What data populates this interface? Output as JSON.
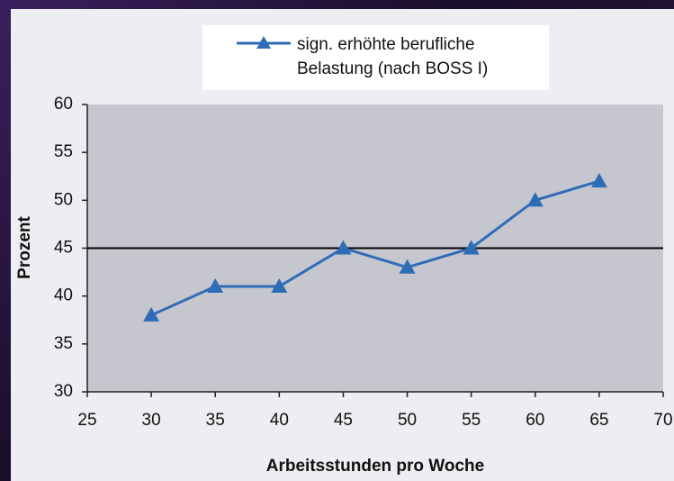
{
  "chart_data": {
    "type": "line",
    "x_label": "Arbeitsstunden pro Woche",
    "y_label": "Prozent",
    "x": [
      30,
      35,
      40,
      45,
      50,
      55,
      60,
      65
    ],
    "series": [
      {
        "name": "sign. erhöhte berufliche Belastung (nach BOSS I)",
        "color": "#2e6db6",
        "values": [
          38,
          41,
          41,
          45,
          43,
          45,
          50,
          52
        ]
      }
    ],
    "xlim": [
      25,
      70
    ],
    "xticks": [
      25,
      30,
      35,
      40,
      45,
      50,
      55,
      60,
      65,
      70
    ],
    "ylim": [
      30,
      60
    ],
    "yticks": [
      30,
      35,
      40,
      45,
      50,
      55,
      60
    ],
    "reference_line": 45,
    "legend": "top"
  }
}
